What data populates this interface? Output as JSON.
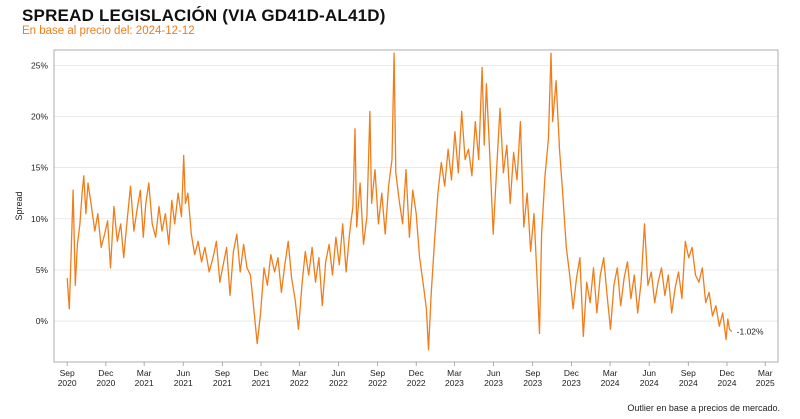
{
  "header": {
    "title": "SPREAD LEGISLACIÓN (VIA GD41D-AL41D)",
    "subtitle": "En base al precio del: 2024-12-12"
  },
  "footnote": "Outlier en base a precios de mercado.",
  "colors": {
    "line": "#f07d1a",
    "grid": "#e4e4e4",
    "axis": "#999999"
  },
  "chart_data": {
    "type": "line",
    "ylabel": "Spread",
    "ylim": [
      -0.04,
      0.265
    ],
    "yticks": [
      0,
      0.05,
      0.1,
      0.15,
      0.2,
      0.25
    ],
    "ytick_labels": [
      "0%",
      "5%",
      "10%",
      "15%",
      "20%",
      "25%"
    ],
    "xlim": [
      "2020-08-01",
      "2025-03-31"
    ],
    "xticks": [
      {
        "date": "2020-09-01",
        "label": [
          "Sep",
          "2020"
        ]
      },
      {
        "date": "2020-12-01",
        "label": [
          "Dec",
          "2020"
        ]
      },
      {
        "date": "2021-03-01",
        "label": [
          "Mar",
          "2021"
        ]
      },
      {
        "date": "2021-06-01",
        "label": [
          "Jun",
          "2021"
        ]
      },
      {
        "date": "2021-09-01",
        "label": [
          "Sep",
          "2021"
        ]
      },
      {
        "date": "2021-12-01",
        "label": [
          "Dec",
          "2021"
        ]
      },
      {
        "date": "2022-03-01",
        "label": [
          "Mar",
          "2022"
        ]
      },
      {
        "date": "2022-06-01",
        "label": [
          "Jun",
          "2022"
        ]
      },
      {
        "date": "2022-09-01",
        "label": [
          "Sep",
          "2022"
        ]
      },
      {
        "date": "2022-12-01",
        "label": [
          "Dec",
          "2022"
        ]
      },
      {
        "date": "2023-03-01",
        "label": [
          "Mar",
          "2023"
        ]
      },
      {
        "date": "2023-06-01",
        "label": [
          "Jun",
          "2023"
        ]
      },
      {
        "date": "2023-09-01",
        "label": [
          "Sep",
          "2023"
        ]
      },
      {
        "date": "2023-12-01",
        "label": [
          "Dec",
          "2023"
        ]
      },
      {
        "date": "2024-03-01",
        "label": [
          "Mar",
          "2024"
        ]
      },
      {
        "date": "2024-06-01",
        "label": [
          "Jun",
          "2024"
        ]
      },
      {
        "date": "2024-09-01",
        "label": [
          "Sep",
          "2024"
        ]
      },
      {
        "date": "2024-12-01",
        "label": [
          "Dec",
          "2024"
        ]
      },
      {
        "date": "2025-03-01",
        "label": [
          "Mar",
          "2025"
        ]
      }
    ],
    "end_label": "-1.02%",
    "series": [
      {
        "points": [
          [
            "2020-09-01",
            0.042
          ],
          [
            "2020-09-06",
            0.012
          ],
          [
            "2020-09-10",
            0.062
          ],
          [
            "2020-09-15",
            0.128
          ],
          [
            "2020-09-20",
            0.035
          ],
          [
            "2020-09-25",
            0.075
          ],
          [
            "2020-10-01",
            0.095
          ],
          [
            "2020-10-06",
            0.125
          ],
          [
            "2020-10-10",
            0.142
          ],
          [
            "2020-10-15",
            0.105
          ],
          [
            "2020-10-20",
            0.135
          ],
          [
            "2020-10-27",
            0.115
          ],
          [
            "2020-11-05",
            0.088
          ],
          [
            "2020-11-12",
            0.105
          ],
          [
            "2020-11-20",
            0.072
          ],
          [
            "2020-11-28",
            0.085
          ],
          [
            "2020-12-05",
            0.098
          ],
          [
            "2020-12-12",
            0.052
          ],
          [
            "2020-12-20",
            0.112
          ],
          [
            "2020-12-28",
            0.078
          ],
          [
            "2021-01-05",
            0.095
          ],
          [
            "2021-01-12",
            0.062
          ],
          [
            "2021-01-20",
            0.098
          ],
          [
            "2021-01-28",
            0.132
          ],
          [
            "2021-02-05",
            0.088
          ],
          [
            "2021-02-12",
            0.108
          ],
          [
            "2021-02-20",
            0.128
          ],
          [
            "2021-02-27",
            0.082
          ],
          [
            "2021-03-05",
            0.115
          ],
          [
            "2021-03-12",
            0.135
          ],
          [
            "2021-03-20",
            0.095
          ],
          [
            "2021-03-28",
            0.082
          ],
          [
            "2021-04-05",
            0.112
          ],
          [
            "2021-04-12",
            0.088
          ],
          [
            "2021-04-20",
            0.105
          ],
          [
            "2021-04-28",
            0.075
          ],
          [
            "2021-05-05",
            0.118
          ],
          [
            "2021-05-12",
            0.095
          ],
          [
            "2021-05-20",
            0.125
          ],
          [
            "2021-05-28",
            0.102
          ],
          [
            "2021-06-02",
            0.162
          ],
          [
            "2021-06-06",
            0.115
          ],
          [
            "2021-06-12",
            0.125
          ],
          [
            "2021-06-20",
            0.085
          ],
          [
            "2021-06-28",
            0.065
          ],
          [
            "2021-07-06",
            0.078
          ],
          [
            "2021-07-14",
            0.058
          ],
          [
            "2021-07-22",
            0.072
          ],
          [
            "2021-08-01",
            0.048
          ],
          [
            "2021-08-10",
            0.062
          ],
          [
            "2021-08-18",
            0.078
          ],
          [
            "2021-08-26",
            0.038
          ],
          [
            "2021-09-03",
            0.055
          ],
          [
            "2021-09-11",
            0.072
          ],
          [
            "2021-09-19",
            0.025
          ],
          [
            "2021-09-27",
            0.068
          ],
          [
            "2021-10-05",
            0.085
          ],
          [
            "2021-10-13",
            0.048
          ],
          [
            "2021-10-21",
            0.075
          ],
          [
            "2021-10-29",
            0.052
          ],
          [
            "2021-11-06",
            0.045
          ],
          [
            "2021-11-14",
            0.012
          ],
          [
            "2021-11-22",
            -0.022
          ],
          [
            "2021-11-30",
            0.008
          ],
          [
            "2021-12-08",
            0.052
          ],
          [
            "2021-12-16",
            0.035
          ],
          [
            "2021-12-24",
            0.065
          ],
          [
            "2022-01-02",
            0.048
          ],
          [
            "2022-01-10",
            0.062
          ],
          [
            "2022-01-18",
            0.028
          ],
          [
            "2022-01-26",
            0.055
          ],
          [
            "2022-02-03",
            0.078
          ],
          [
            "2022-02-11",
            0.042
          ],
          [
            "2022-02-19",
            0.022
          ],
          [
            "2022-02-27",
            -0.008
          ],
          [
            "2022-03-07",
            0.035
          ],
          [
            "2022-03-15",
            0.068
          ],
          [
            "2022-03-23",
            0.045
          ],
          [
            "2022-03-31",
            0.072
          ],
          [
            "2022-04-08",
            0.038
          ],
          [
            "2022-04-16",
            0.062
          ],
          [
            "2022-04-24",
            0.015
          ],
          [
            "2022-05-02",
            0.058
          ],
          [
            "2022-05-10",
            0.075
          ],
          [
            "2022-05-18",
            0.045
          ],
          [
            "2022-05-26",
            0.082
          ],
          [
            "2022-06-03",
            0.055
          ],
          [
            "2022-06-11",
            0.095
          ],
          [
            "2022-06-19",
            0.048
          ],
          [
            "2022-06-27",
            0.085
          ],
          [
            "2022-07-05",
            0.112
          ],
          [
            "2022-07-10",
            0.188
          ],
          [
            "2022-07-14",
            0.092
          ],
          [
            "2022-07-22",
            0.135
          ],
          [
            "2022-07-30",
            0.075
          ],
          [
            "2022-08-07",
            0.102
          ],
          [
            "2022-08-14",
            0.205
          ],
          [
            "2022-08-18",
            0.115
          ],
          [
            "2022-08-26",
            0.148
          ],
          [
            "2022-09-03",
            0.095
          ],
          [
            "2022-09-11",
            0.125
          ],
          [
            "2022-09-19",
            0.085
          ],
          [
            "2022-09-27",
            0.132
          ],
          [
            "2022-10-05",
            0.158
          ],
          [
            "2022-10-10",
            0.262
          ],
          [
            "2022-10-14",
            0.145
          ],
          [
            "2022-10-22",
            0.118
          ],
          [
            "2022-10-30",
            0.095
          ],
          [
            "2022-11-07",
            0.148
          ],
          [
            "2022-11-15",
            0.082
          ],
          [
            "2022-11-23",
            0.128
          ],
          [
            "2022-12-01",
            0.105
          ],
          [
            "2022-12-09",
            0.062
          ],
          [
            "2022-12-17",
            0.038
          ],
          [
            "2022-12-25",
            0.012
          ],
          [
            "2022-12-30",
            -0.028
          ],
          [
            "2023-01-05",
            0.025
          ],
          [
            "2023-01-13",
            0.078
          ],
          [
            "2023-01-21",
            0.125
          ],
          [
            "2023-01-29",
            0.155
          ],
          [
            "2023-02-06",
            0.132
          ],
          [
            "2023-02-14",
            0.168
          ],
          [
            "2023-02-22",
            0.138
          ],
          [
            "2023-03-02",
            0.185
          ],
          [
            "2023-03-10",
            0.145
          ],
          [
            "2023-03-18",
            0.205
          ],
          [
            "2023-03-26",
            0.158
          ],
          [
            "2023-04-03",
            0.168
          ],
          [
            "2023-04-11",
            0.142
          ],
          [
            "2023-04-19",
            0.195
          ],
          [
            "2023-04-27",
            0.158
          ],
          [
            "2023-05-05",
            0.248
          ],
          [
            "2023-05-10",
            0.172
          ],
          [
            "2023-05-15",
            0.232
          ],
          [
            "2023-05-23",
            0.162
          ],
          [
            "2023-05-31",
            0.085
          ],
          [
            "2023-06-08",
            0.148
          ],
          [
            "2023-06-16",
            0.208
          ],
          [
            "2023-06-24",
            0.145
          ],
          [
            "2023-07-02",
            0.172
          ],
          [
            "2023-07-10",
            0.115
          ],
          [
            "2023-07-18",
            0.165
          ],
          [
            "2023-07-26",
            0.138
          ],
          [
            "2023-08-03",
            0.195
          ],
          [
            "2023-08-11",
            0.092
          ],
          [
            "2023-08-19",
            0.125
          ],
          [
            "2023-08-27",
            0.068
          ],
          [
            "2023-09-04",
            0.105
          ],
          [
            "2023-09-12",
            0.035
          ],
          [
            "2023-09-17",
            -0.012
          ],
          [
            "2023-09-22",
            0.085
          ],
          [
            "2023-09-30",
            0.142
          ],
          [
            "2023-10-08",
            0.178
          ],
          [
            "2023-10-14",
            0.262
          ],
          [
            "2023-10-18",
            0.195
          ],
          [
            "2023-10-26",
            0.235
          ],
          [
            "2023-11-03",
            0.168
          ],
          [
            "2023-11-11",
            0.122
          ],
          [
            "2023-11-19",
            0.072
          ],
          [
            "2023-11-27",
            0.045
          ],
          [
            "2023-12-05",
            0.012
          ],
          [
            "2023-12-13",
            0.042
          ],
          [
            "2023-12-21",
            0.062
          ],
          [
            "2023-12-29",
            -0.015
          ],
          [
            "2024-01-06",
            0.038
          ],
          [
            "2024-01-14",
            0.018
          ],
          [
            "2024-01-22",
            0.052
          ],
          [
            "2024-01-30",
            0.008
          ],
          [
            "2024-02-07",
            0.045
          ],
          [
            "2024-02-15",
            0.062
          ],
          [
            "2024-02-23",
            0.025
          ],
          [
            "2024-03-02",
            -0.008
          ],
          [
            "2024-03-10",
            0.035
          ],
          [
            "2024-03-18",
            0.052
          ],
          [
            "2024-03-26",
            0.015
          ],
          [
            "2024-04-03",
            0.042
          ],
          [
            "2024-04-11",
            0.058
          ],
          [
            "2024-04-19",
            0.022
          ],
          [
            "2024-04-27",
            0.045
          ],
          [
            "2024-05-05",
            0.008
          ],
          [
            "2024-05-13",
            0.038
          ],
          [
            "2024-05-21",
            0.095
          ],
          [
            "2024-05-29",
            0.035
          ],
          [
            "2024-06-06",
            0.048
          ],
          [
            "2024-06-14",
            0.018
          ],
          [
            "2024-06-22",
            0.038
          ],
          [
            "2024-06-30",
            0.052
          ],
          [
            "2024-07-08",
            0.025
          ],
          [
            "2024-07-16",
            0.045
          ],
          [
            "2024-07-24",
            0.008
          ],
          [
            "2024-08-01",
            0.032
          ],
          [
            "2024-08-09",
            0.048
          ],
          [
            "2024-08-17",
            0.022
          ],
          [
            "2024-08-25",
            0.078
          ],
          [
            "2024-09-02",
            0.062
          ],
          [
            "2024-09-10",
            0.072
          ],
          [
            "2024-09-18",
            0.045
          ],
          [
            "2024-09-26",
            0.038
          ],
          [
            "2024-10-04",
            0.052
          ],
          [
            "2024-10-12",
            0.018
          ],
          [
            "2024-10-20",
            0.028
          ],
          [
            "2024-10-28",
            0.005
          ],
          [
            "2024-11-05",
            0.015
          ],
          [
            "2024-11-13",
            -0.005
          ],
          [
            "2024-11-21",
            0.008
          ],
          [
            "2024-11-29",
            -0.018
          ],
          [
            "2024-12-03",
            0.002
          ],
          [
            "2024-12-07",
            -0.008
          ],
          [
            "2024-12-12",
            -0.0102
          ]
        ]
      }
    ]
  }
}
